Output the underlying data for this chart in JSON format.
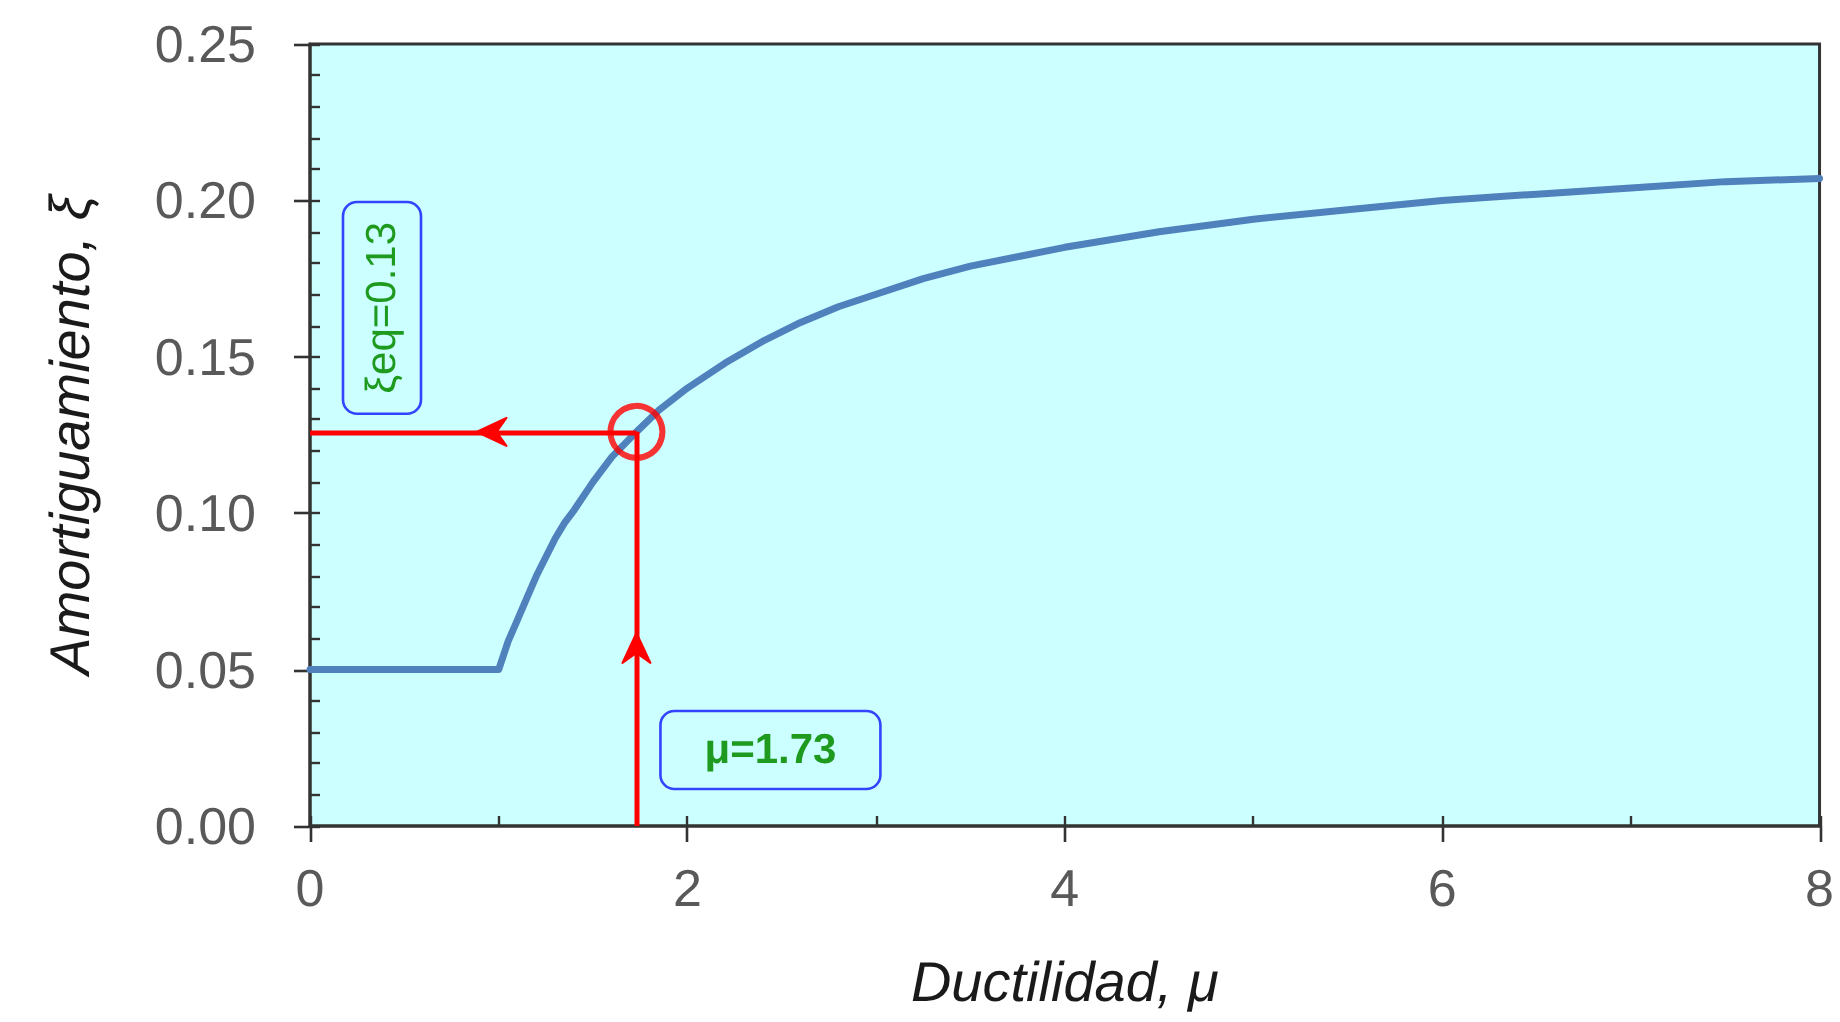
{
  "chart_data": {
    "type": "line",
    "xlabel": "Ductilidad, μ",
    "ylabel": "Amortiguamiento, ξ",
    "xlim": [
      0,
      8
    ],
    "ylim": [
      0,
      0.25
    ],
    "xticks": [
      0,
      {
        "value": 1,
        "label": null
      },
      2,
      {
        "value": 3,
        "label": null
      },
      4,
      {
        "value": 5,
        "label": null
      },
      6,
      {
        "value": 7,
        "label": null
      },
      8
    ],
    "yticks": [
      {
        "value": 0,
        "label": "0.00"
      },
      {
        "value": 0.01,
        "label": null
      },
      {
        "value": 0.02,
        "label": null
      },
      {
        "value": 0.03,
        "label": null
      },
      {
        "value": 0.04,
        "label": null
      },
      0.05,
      {
        "value": 0.06,
        "label": null
      },
      {
        "value": 0.07,
        "label": null
      },
      {
        "value": 0.08,
        "label": null
      },
      {
        "value": 0.09,
        "label": null
      },
      {
        "value": 0.1,
        "label": "0.10"
      },
      {
        "value": 0.11,
        "label": null
      },
      {
        "value": 0.12,
        "label": null
      },
      {
        "value": 0.13,
        "label": null
      },
      {
        "value": 0.14,
        "label": null
      },
      0.15,
      {
        "value": 0.16,
        "label": null
      },
      {
        "value": 0.17,
        "label": null
      },
      {
        "value": 0.18,
        "label": null
      },
      {
        "value": 0.19,
        "label": null
      },
      {
        "value": 0.2,
        "label": "0.20"
      },
      {
        "value": 0.21,
        "label": null
      },
      {
        "value": 0.22,
        "label": null
      },
      {
        "value": 0.23,
        "label": null
      },
      {
        "value": 0.24,
        "label": null
      },
      0.25
    ],
    "series": [
      {
        "color": "#4f81bd",
        "x": [
          0,
          1,
          1.05,
          1.1,
          1.15,
          1.2,
          1.25,
          1.3,
          1.35,
          1.4,
          1.5,
          1.6,
          1.73,
          1.85,
          2,
          2.2,
          2.4,
          2.6,
          2.8,
          3,
          3.25,
          3.5,
          3.75,
          4,
          4.5,
          5,
          5.5,
          6,
          6.5,
          7,
          7.5,
          8
        ],
        "values": [
          0.05,
          0.05,
          0.059,
          0.066,
          0.073,
          0.08,
          0.086,
          0.092,
          0.097,
          0.101,
          0.11,
          0.118,
          0.126,
          0.133,
          0.14,
          0.148,
          0.155,
          0.161,
          0.166,
          0.17,
          0.175,
          0.179,
          0.182,
          0.185,
          0.19,
          0.194,
          0.197,
          0.2,
          0.202,
          0.204,
          0.206,
          0.207
        ]
      },
      {
        "type": "scatter",
        "color": "#ff0000",
        "marker": "circle",
        "x": [
          1.73
        ],
        "values": [
          0.126
        ]
      }
    ],
    "ref_lines": [
      {
        "axis": "x",
        "value": 1.73,
        "label": "μ=1.73",
        "color": "#ff0000"
      },
      {
        "axis": "y",
        "value": 0.126,
        "label": "ξeq=0.13",
        "color": "#ff0000"
      }
    ]
  }
}
